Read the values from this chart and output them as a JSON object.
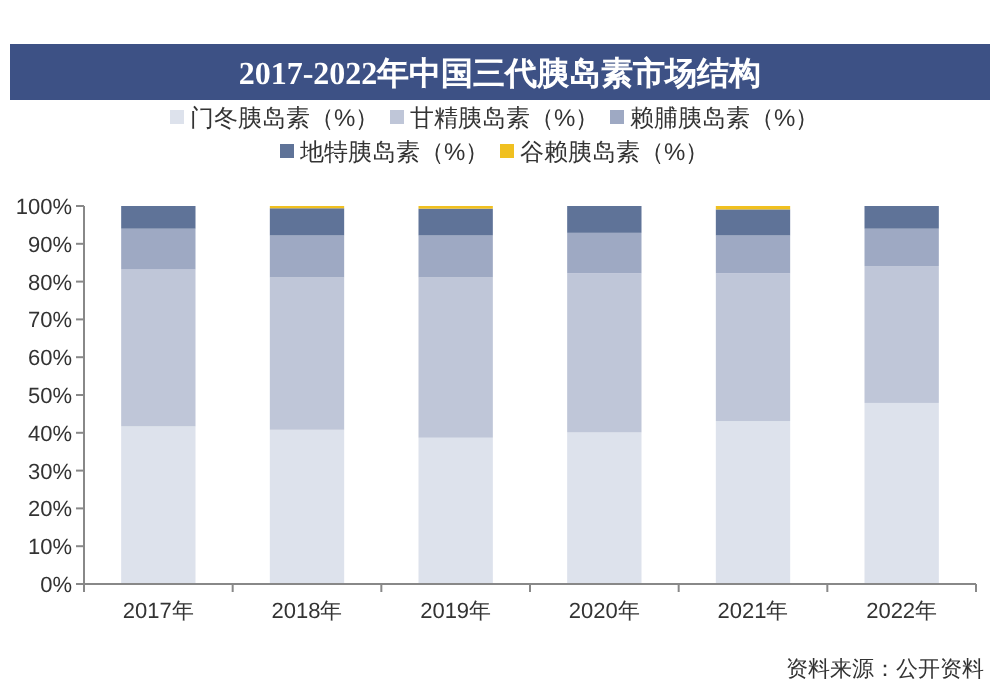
{
  "chart_data": {
    "type": "bar",
    "stacked": true,
    "title": "2017-2022年中国三代胰岛素市场结构",
    "categories": [
      "2017年",
      "2018年",
      "2019年",
      "2020年",
      "2021年",
      "2022年"
    ],
    "series": [
      {
        "name": "门冬胰岛素（%）",
        "color": "#dde2ec",
        "values": [
          41.7,
          40.8,
          38.7,
          40.1,
          43.1,
          47.9
        ]
      },
      {
        "name": "甘精胰岛素（%）",
        "color": "#bfc6d8",
        "values": [
          41.5,
          40.3,
          42.4,
          42.1,
          39.1,
          36.2
        ]
      },
      {
        "name": "赖脯胰岛素（%）",
        "color": "#9ea9c3",
        "values": [
          10.8,
          11.1,
          11.1,
          10.7,
          10.0,
          9.9
        ]
      },
      {
        "name": "地特胰岛素（%）",
        "color": "#5f7398",
        "values": [
          6.0,
          7.2,
          7.1,
          7.1,
          6.9,
          6.0
        ]
      },
      {
        "name": "谷赖胰岛素（%）",
        "color": "#f0c020",
        "values": [
          0,
          0.6,
          0.7,
          0,
          0.9,
          0
        ]
      }
    ],
    "ylim": [
      0,
      100
    ],
    "yticks": [
      {
        "value": 0,
        "label": "0%"
      },
      {
        "value": 10,
        "label": "10%"
      },
      {
        "value": 20,
        "label": "20%"
      },
      {
        "value": 30,
        "label": "30%"
      },
      {
        "value": 40,
        "label": "40%"
      },
      {
        "value": 50,
        "label": "50%"
      },
      {
        "value": 60,
        "label": "60%"
      },
      {
        "value": 70,
        "label": "70%"
      },
      {
        "value": 80,
        "label": "80%"
      },
      {
        "value": 90,
        "label": "90%"
      },
      {
        "value": 100,
        "label": "100%"
      }
    ],
    "legend": "top",
    "grid": false,
    "annotations": [
      "资料来源：公开资料"
    ]
  }
}
